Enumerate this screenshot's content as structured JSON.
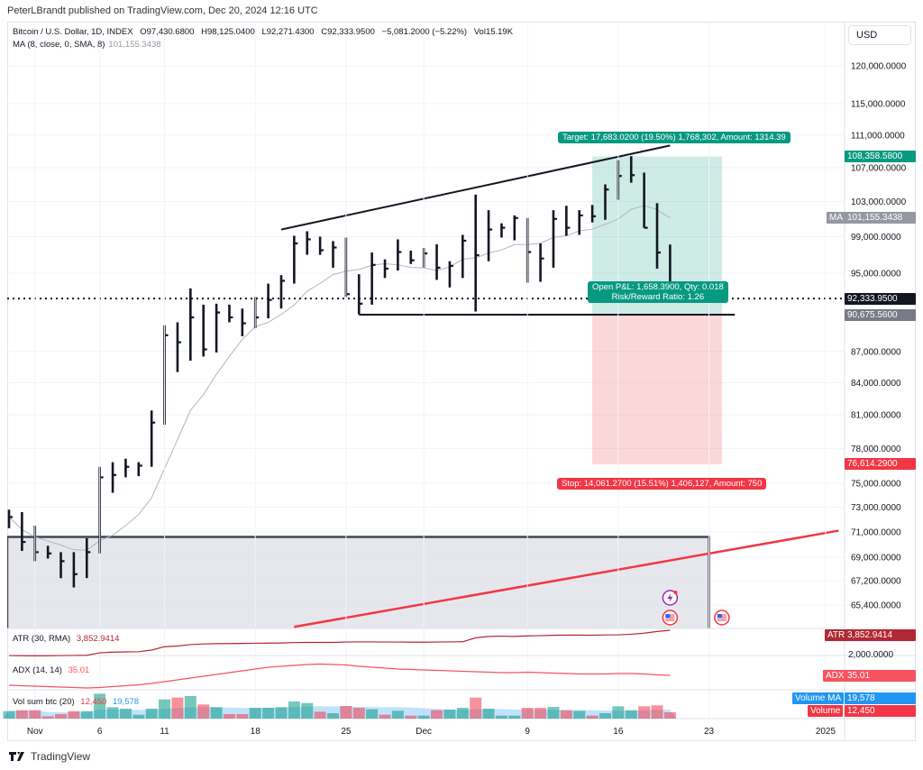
{
  "header": {
    "published": "PeterLBrandt published on TradingView.com, Dec 20, 2024 12:16 UTC",
    "symbol": "Bitcoin / U.S. Dollar, 1D, INDEX",
    "open": "O97,430.6800",
    "high": "H98,125.0400",
    "low": "L92,271.4300",
    "close": "C92,333.9500",
    "change": "−5,081.2000 (−5.22%)",
    "volume": "Vol15.19K",
    "ma_label": "MA (8, close, 0, SMA, 8)",
    "ma_value": "101,155.3438"
  },
  "currency": "USD",
  "colors": {
    "bar": "#131722",
    "ma": "#b2b5be",
    "teal": "#089981",
    "red": "#f23645",
    "atr": "#b22833",
    "adx": "#f7525f",
    "vol_ma": "#2196f3",
    "grid": "#f0f3fa"
  },
  "price_axis": {
    "scale": "log",
    "ticks": [
      "120,000.0000",
      "115,000.0000",
      "111,000.0000",
      "107,000.0000",
      "103,000.0000",
      "99,000.0000",
      "95,000.0000",
      "87,000.0000",
      "84,000.0000",
      "81,000.0000",
      "78,000.0000",
      "75,000.0000",
      "73,000.0000",
      "71,000.0000",
      "69,000.0000",
      "67,200.0000",
      "65,400.0000"
    ],
    "labels": [
      {
        "text": "108,358.5800",
        "price": 108358.58,
        "color": "#089981"
      },
      {
        "text": "101,155.3438",
        "price": 101155.3438,
        "color": "#9598a1",
        "tag": "MA"
      },
      {
        "text": "92,333.9500",
        "price": 92333.95,
        "color": "#131722"
      },
      {
        "text": "90,675.5600",
        "price": 90675.56,
        "color": "#787b86"
      },
      {
        "text": "76,614.2900",
        "price": 76614.29,
        "color": "#f23645"
      }
    ]
  },
  "time_axis": [
    {
      "label": "Nov",
      "date": "2024-11-01"
    },
    {
      "label": "6",
      "date": "2024-11-06"
    },
    {
      "label": "11",
      "date": "2024-11-11"
    },
    {
      "label": "18",
      "date": "2024-11-18"
    },
    {
      "label": "25",
      "date": "2024-11-25"
    },
    {
      "label": "Dec",
      "date": "2024-12-01"
    },
    {
      "label": "9",
      "date": "2024-12-09"
    },
    {
      "label": "16",
      "date": "2024-12-16"
    },
    {
      "label": "23",
      "date": "2024-12-23"
    },
    {
      "label": "2025",
      "date": "2025-01-01"
    }
  ],
  "chart_data": {
    "type": "ohlc",
    "start_date": "2024-10-30",
    "interval": "1D",
    "bars_hlc": [
      [
        72800,
        71300,
        72200
      ],
      [
        72600,
        69500,
        70200
      ],
      [
        71500,
        68700,
        69400
      ],
      [
        69900,
        68900,
        69300
      ],
      [
        69400,
        67400,
        68700
      ],
      [
        69400,
        66700,
        67700
      ],
      [
        70500,
        67400,
        69400
      ],
      [
        76400,
        69300,
        75500
      ],
      [
        76800,
        74200,
        75700
      ],
      [
        77100,
        75500,
        76400
      ],
      [
        76800,
        75600,
        76500
      ],
      [
        81400,
        76400,
        80300
      ],
      [
        89600,
        80100,
        88600
      ],
      [
        89900,
        85000,
        87900
      ],
      [
        93400,
        86100,
        90400
      ],
      [
        91700,
        86500,
        87200
      ],
      [
        91800,
        86900,
        90900
      ],
      [
        91700,
        89900,
        90400
      ],
      [
        91300,
        88500,
        89800
      ],
      [
        92500,
        89300,
        90400
      ],
      [
        93900,
        90300,
        92200
      ],
      [
        94800,
        91300,
        94200
      ],
      [
        99100,
        93900,
        98250
      ],
      [
        99600,
        97000,
        98700
      ],
      [
        99000,
        97000,
        97500
      ],
      [
        98500,
        95600,
        97800
      ],
      [
        98900,
        92500,
        92800
      ],
      [
        94900,
        90700,
        91800
      ],
      [
        97250,
        91700,
        95900
      ],
      [
        96500,
        94500,
        95500
      ],
      [
        98700,
        95300,
        97300
      ],
      [
        97450,
        96000,
        96400
      ],
      [
        97750,
        95600,
        97150
      ],
      [
        98150,
        94300,
        95600
      ],
      [
        96300,
        93500,
        95800
      ],
      [
        99200,
        94500,
        98550
      ],
      [
        103800,
        91000,
        96950
      ],
      [
        102000,
        96300,
        99800
      ],
      [
        100500,
        98900,
        100000
      ],
      [
        101400,
        98600,
        101100
      ],
      [
        101100,
        94000,
        97300
      ],
      [
        98250,
        94100,
        96600
      ],
      [
        102000,
        95600,
        101000
      ],
      [
        102500,
        99100,
        100000
      ],
      [
        102000,
        99200,
        101400
      ],
      [
        102600,
        100600,
        101300
      ],
      [
        105000,
        100900,
        104400
      ],
      [
        107900,
        103200,
        106000
      ],
      [
        108400,
        105200,
        106100
      ],
      [
        106400,
        100000,
        100000
      ],
      [
        102800,
        95500,
        97250
      ],
      [
        98125.04,
        92271.43,
        92333.95
      ]
    ],
    "ma_period": 8,
    "last_price": 92333.95,
    "volume": [
      14800,
      16600,
      16600,
      4700,
      8900,
      14800,
      14800,
      49200,
      22500,
      19600,
      7700,
      19600,
      38000,
      41500,
      44500,
      27900,
      22500,
      8900,
      8900,
      21300,
      21300,
      22500,
      33800,
      30800,
      13600,
      10700,
      24900,
      21300,
      18400,
      7700,
      15400,
      5900,
      5900,
      16600,
      17800,
      21300,
      41500,
      19600,
      5900,
      5900,
      21300,
      21300,
      23100,
      16600,
      15400,
      5900,
      10700,
      24300,
      16600,
      24300,
      26100,
      12450
    ],
    "atr": [
      2000,
      1990,
      1980,
      1990,
      2000,
      2010,
      2020,
      2200,
      2250,
      2270,
      2280,
      2400,
      2650,
      2700,
      2800,
      2850,
      2870,
      2880,
      2890,
      2900,
      2910,
      2920,
      2950,
      2960,
      2960,
      2960,
      2990,
      3000,
      3000,
      2990,
      2990,
      2980,
      2980,
      2990,
      3000,
      3010,
      3300,
      3400,
      3420,
      3400,
      3440,
      3460,
      3480,
      3500,
      3500,
      3490,
      3510,
      3520,
      3560,
      3640,
      3760,
      3852.9414
    ],
    "adx": [
      24,
      23.5,
      23,
      22.5,
      22,
      21.5,
      21,
      21.5,
      22.5,
      23.5,
      24.5,
      26,
      28,
      30,
      32,
      34,
      36,
      38,
      40,
      42,
      44,
      45,
      46,
      47,
      47.5,
      47,
      46.5,
      45,
      44,
      43,
      42,
      41.5,
      41,
      40.5,
      40,
      39.5,
      39,
      38.5,
      38,
      38,
      38.5,
      38,
      37.5,
      37,
      36.5,
      36.5,
      36.5,
      37,
      37,
      36.5,
      35.5,
      35.01
    ]
  },
  "drawings": {
    "wedge_top": {
      "start": [
        "2024-11-20",
        99800
      ],
      "end": [
        "2024-12-20",
        109700
      ]
    },
    "support": {
      "start": "2024-11-26",
      "end": "2024-12-25",
      "price": 90675.56
    },
    "range_box": {
      "end": "2024-12-23",
      "top": 70600
    },
    "trend_red": {
      "start": [
        "2024-11-21",
        63800
      ],
      "end": [
        "2025-01-02",
        71100
      ]
    },
    "position": {
      "start": "2024-12-14",
      "end": "2024-12-24",
      "entry": 90675.56,
      "target": 108358.58,
      "stop": 76614.29,
      "target_label": "Target: 17,683.0200 (19.50%) 1,768,302, Amount: 1314.39",
      "pnl_label": "Open P&L: 1,658.3900, Qty: 0.018",
      "rr_label": "Risk/Reward Ratio: 1.26",
      "stop_label": "Stop: 14,061.2700 (15.51%) 1,406,127, Amount: 750"
    }
  },
  "indicators": {
    "atr": {
      "label": "ATR (30, RMA)",
      "value": "3,852.9414",
      "tag": "ATR",
      "axis_tick": "2,000.0000"
    },
    "adx": {
      "label": "ADX (14, 14)",
      "value": "35.01",
      "tag": "ADX"
    },
    "vol": {
      "label": "Vol sum btc (20)",
      "value": "12,450",
      "ma_value": "19,578",
      "ma_tag": "Volume MA",
      "tag": "Volume"
    }
  },
  "events": [
    {
      "icon": "lightning-icon",
      "date": "2024-12-20"
    },
    {
      "icon": "us-flag-icon",
      "date": "2024-12-20"
    },
    {
      "icon": "us-flag-icon",
      "date": "2024-12-24"
    }
  ],
  "footer": {
    "brand": "TradingView"
  }
}
